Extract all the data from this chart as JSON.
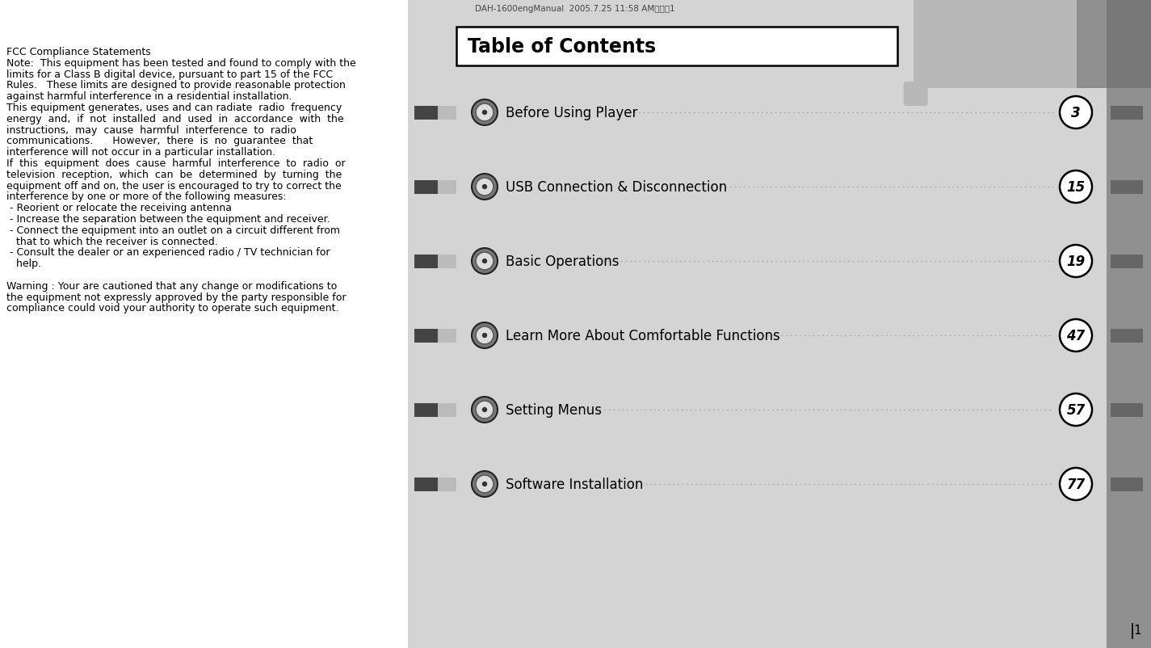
{
  "title_header": "DAH-1600engManual  2005.7.25 11:58 AM페이직1",
  "toc_title": "Table of Contents",
  "toc_entries": [
    {
      "label": "Before Using Player",
      "page": "3"
    },
    {
      "label": "USB Connection & Disconnection",
      "page": "15"
    },
    {
      "label": "Basic Operations",
      "page": "19"
    },
    {
      "label": "Learn More About Comfortable Functions",
      "page": "47"
    },
    {
      "label": "Setting Menus",
      "page": "57"
    },
    {
      "label": "Software Installation",
      "page": "77"
    }
  ],
  "page_number": "1",
  "bg_color": "#ffffff",
  "panel_light": "#d4d4d4",
  "panel_mid": "#b8b8b8",
  "panel_dark": "#909090",
  "panel_darker": "#787878",
  "toc_box_bg": "#ffffff",
  "toc_box_border": "#000000",
  "entry_bar_dark": "#444444",
  "entry_bar_light": "#bbbbbb",
  "right_bar_dark": "#666666",
  "page_circle_border": "#000000",
  "dot_color": "#aaaaaa"
}
